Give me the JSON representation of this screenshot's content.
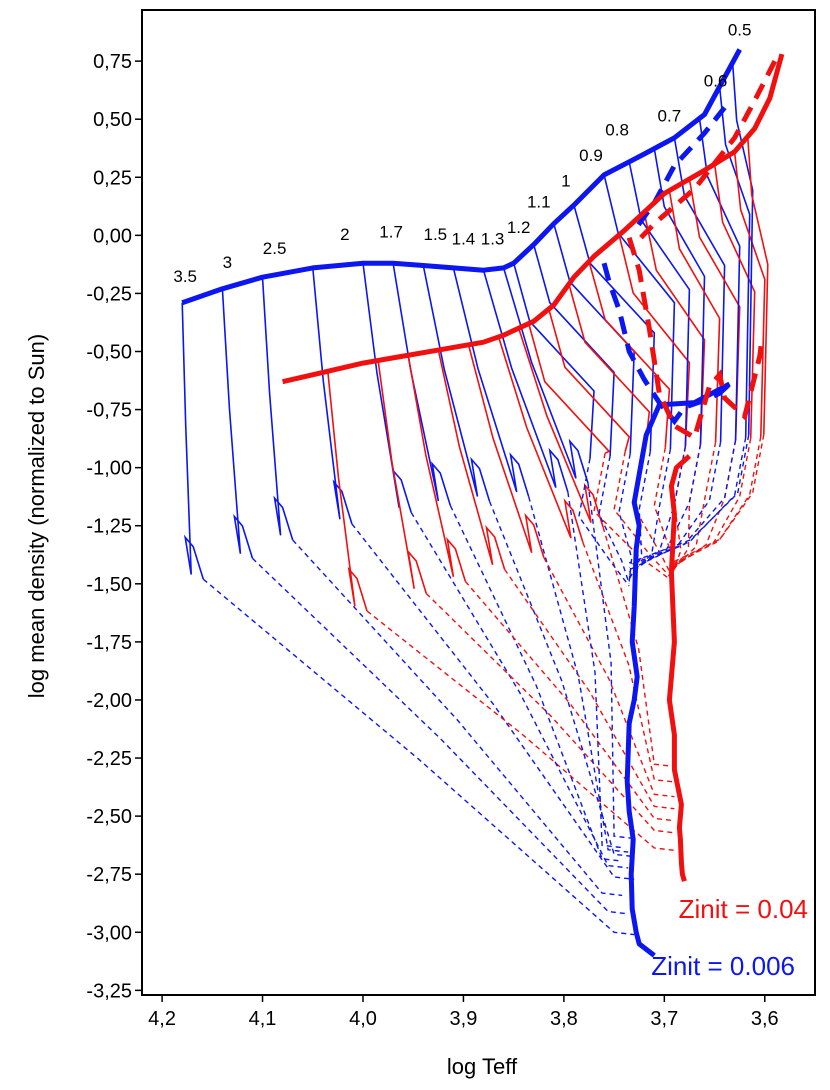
{
  "chart_data": {
    "type": "line",
    "title": "",
    "xlabel": "log Teff",
    "ylabel": "log mean density (normalized to Sun)",
    "xlim": [
      4.22,
      3.55
    ],
    "ylim": [
      -3.27,
      0.97
    ],
    "x_reversed": true,
    "x_ticks": [
      4.2,
      4.1,
      4.0,
      3.9,
      3.8,
      3.7,
      3.6
    ],
    "x_tick_labels": [
      "4,2",
      "4,1",
      "4,0",
      "3,9",
      "3,8",
      "3,7",
      "3,6"
    ],
    "y_ticks": [
      0.75,
      0.5,
      0.25,
      0.0,
      -0.25,
      -0.5,
      -0.75,
      -1.0,
      -1.25,
      -1.5,
      -1.75,
      -2.0,
      -2.25,
      -2.5,
      -2.75,
      -3.0,
      -3.25
    ],
    "y_tick_labels": [
      "0,75",
      "0,50",
      "0,25",
      "0,00",
      "-0,25",
      "-0,50",
      "-0,75",
      "-1,00",
      "-1,25",
      "-1,50",
      "-1,75",
      "-2,00",
      "-2,25",
      "-2,50",
      "-2,75",
      "-3,00",
      "-3,25"
    ],
    "mass_labels": [
      {
        "text": "3.5",
        "x": 4.177,
        "y": -0.2
      },
      {
        "text": "3",
        "x": 4.135,
        "y": -0.14
      },
      {
        "text": "2.5",
        "x": 4.088,
        "y": -0.08
      },
      {
        "text": "2",
        "x": 4.018,
        "y": -0.02
      },
      {
        "text": "1.7",
        "x": 3.972,
        "y": -0.01
      },
      {
        "text": "1.5",
        "x": 3.928,
        "y": -0.02
      },
      {
        "text": "1.4",
        "x": 3.9,
        "y": -0.04
      },
      {
        "text": "1.3",
        "x": 3.871,
        "y": -0.04
      },
      {
        "text": "1.2",
        "x": 3.845,
        "y": 0.01
      },
      {
        "text": "1.1",
        "x": 3.825,
        "y": 0.12
      },
      {
        "text": "1",
        "x": 3.798,
        "y": 0.21
      },
      {
        "text": "0.9",
        "x": 3.773,
        "y": 0.32
      },
      {
        "text": "0.8",
        "x": 3.747,
        "y": 0.43
      },
      {
        "text": "0.7",
        "x": 3.695,
        "y": 0.49
      },
      {
        "text": "0.6",
        "x": 3.649,
        "y": 0.64
      },
      {
        "text": "0.5",
        "x": 3.625,
        "y": 0.86
      }
    ],
    "series": [
      {
        "name": "Zinit = 0.006",
        "color": "#0b16f0",
        "zams": {
          "x": [
            4.18,
            4.14,
            4.1,
            4.05,
            4.0,
            3.97,
            3.94,
            3.91,
            3.88,
            3.86,
            3.85,
            3.83,
            3.81,
            3.79,
            3.76,
            3.72,
            3.69,
            3.66,
            3.625
          ],
          "y": [
            -0.29,
            -0.23,
            -0.18,
            -0.14,
            -0.12,
            -0.12,
            -0.13,
            -0.14,
            -0.15,
            -0.14,
            -0.12,
            -0.04,
            0.05,
            0.13,
            0.26,
            0.35,
            0.42,
            0.52,
            0.8
          ]
        },
        "tams": {
          "x": [
            3.64,
            3.66,
            3.69,
            3.71,
            3.73
          ],
          "y": [
            0.55,
            0.44,
            0.3,
            0.14,
            0.02
          ]
        },
        "rgb_base": {
          "x": [
            3.76,
            3.755,
            3.745,
            3.735,
            3.72,
            3.705,
            3.69,
            3.68,
            3.66,
            3.645,
            3.635
          ],
          "y": [
            -0.12,
            -0.2,
            -0.32,
            -0.5,
            -0.62,
            -0.72,
            -0.8,
            -0.74,
            -0.71,
            -0.68,
            -0.64
          ]
        },
        "hayashi": {
          "x": [
            3.635,
            3.67,
            3.705,
            3.718,
            3.73,
            3.725,
            3.728,
            3.73,
            3.732,
            3.727,
            3.73,
            3.735,
            3.737,
            3.735,
            3.731,
            3.733,
            3.732,
            3.728,
            3.725,
            3.71
          ],
          "y": [
            -0.64,
            -0.72,
            -0.73,
            -0.86,
            -1.15,
            -1.25,
            -1.35,
            -1.6,
            -1.75,
            -1.9,
            -2.0,
            -2.1,
            -2.35,
            -2.48,
            -2.6,
            -2.75,
            -2.9,
            -3.0,
            -3.05,
            -3.1
          ]
        },
        "label": "Zinit = 0.006"
      },
      {
        "name": "Zinit = 0.04",
        "color": "#f01010",
        "zams": {
          "x": [
            4.08,
            4.04,
            4.0,
            3.96,
            3.92,
            3.88,
            3.86,
            3.83,
            3.81,
            3.79,
            3.77,
            3.74,
            3.7,
            3.66,
            3.63,
            3.61,
            3.595,
            3.583
          ],
          "y": [
            -0.63,
            -0.59,
            -0.55,
            -0.52,
            -0.49,
            -0.46,
            -0.43,
            -0.37,
            -0.3,
            -0.18,
            -0.09,
            0.02,
            0.18,
            0.28,
            0.36,
            0.46,
            0.59,
            0.78
          ]
        },
        "tams": {
          "x": [
            3.59,
            3.61,
            3.63,
            3.67,
            3.71,
            3.73
          ],
          "y": [
            0.75,
            0.58,
            0.42,
            0.2,
            0.05,
            -0.04
          ]
        },
        "rgb_base": {
          "x": [
            3.735,
            3.725,
            3.715,
            3.705,
            3.69,
            3.67,
            3.655,
            3.645,
            3.64,
            3.635,
            3.62,
            3.605,
            3.603
          ],
          "y": [
            -0.01,
            -0.15,
            -0.4,
            -0.68,
            -0.82,
            -0.87,
            -0.65,
            -0.6,
            -0.7,
            -0.72,
            -0.78,
            -0.52,
            -0.45
          ]
        },
        "hayashi": {
          "x": [
            3.675,
            3.688,
            3.693,
            3.69,
            3.693,
            3.69,
            3.695,
            3.69,
            3.69,
            3.683,
            3.685,
            3.684,
            3.683,
            3.682,
            3.68
          ],
          "y": [
            -0.95,
            -1.0,
            -1.08,
            -1.2,
            -1.45,
            -1.75,
            -2.0,
            -2.15,
            -2.3,
            -2.45,
            -2.55,
            -2.6,
            -2.7,
            -2.75,
            -2.78
          ]
        },
        "label": "Zinit = 0.04"
      }
    ]
  }
}
